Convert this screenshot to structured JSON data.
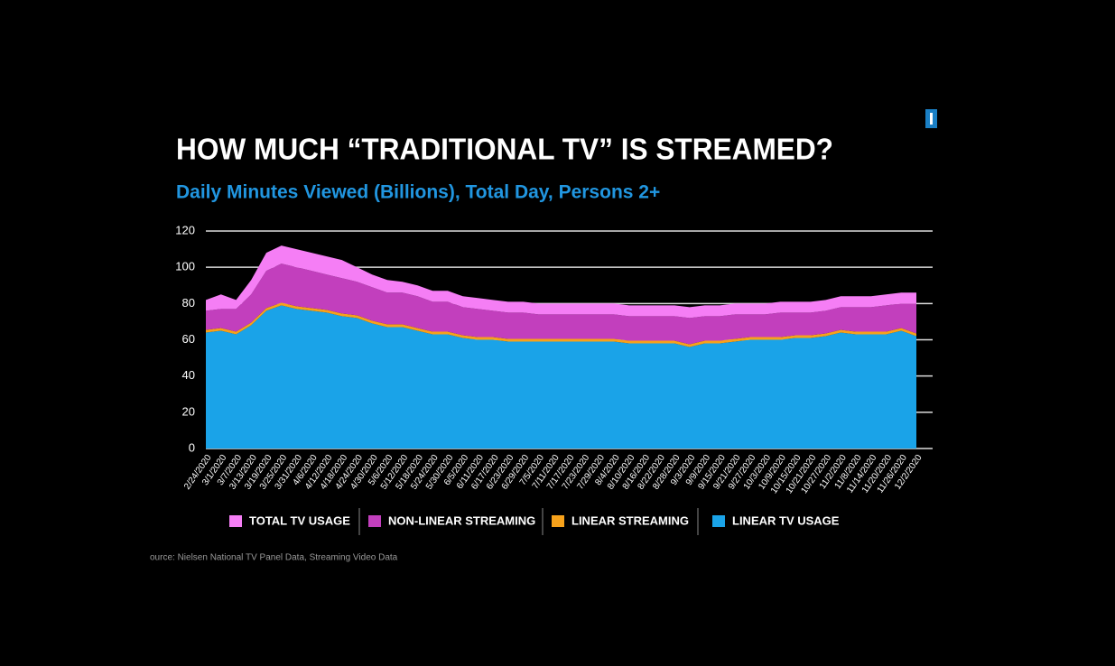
{
  "chart_data": {
    "type": "stacked-area",
    "title": "HOW MUCH “TRADITIONAL TV” IS STREAMED?",
    "subtitle": "Daily Minutes Viewed (Billions), Total Day, Persons 2+",
    "source": "ource: Nielsen National TV Panel Data, Streaming Video Data",
    "categories": [
      "2/24/2020",
      "3/1/2020",
      "3/7/2020",
      "3/13/2020",
      "3/19/2020",
      "3/25/2020",
      "3/31/2020",
      "4/6/2020",
      "4/12/2020",
      "4/18/2020",
      "4/24/2020",
      "4/30/2020",
      "5/6/2020",
      "5/12/2020",
      "5/18/2020",
      "5/24/2020",
      "5/30/2020",
      "6/5/2020",
      "6/11/2020",
      "6/17/2020",
      "6/23/2020",
      "6/29/2020",
      "7/5/2020",
      "7/11/2020",
      "7/17/2020",
      "7/23/2020",
      "7/29/2020",
      "8/4/2020",
      "8/10/2020",
      "8/16/2020",
      "8/22/2020",
      "8/28/2020",
      "9/3/2020",
      "9/9/2020",
      "9/15/2020",
      "9/21/2020",
      "9/27/2020",
      "10/3/2020",
      "10/9/2020",
      "10/15/2020",
      "10/21/2020",
      "10/27/2020",
      "11/2/2020",
      "11/8/2020",
      "11/14/2020",
      "11/20/2020",
      "11/26/2020",
      "12/2/2020"
    ],
    "series": [
      {
        "name": "LINEAR TV USAGE",
        "color": "#1aa3e8",
        "values": [
          64,
          65,
          63,
          68,
          76,
          79,
          77,
          76,
          75,
          73,
          72,
          69,
          67,
          67,
          65,
          63,
          63,
          61,
          60,
          60,
          59,
          59,
          59,
          59,
          59,
          59,
          59,
          59,
          58,
          58,
          58,
          58,
          56,
          58,
          58,
          59,
          60,
          60,
          60,
          61,
          61,
          62,
          64,
          63,
          63,
          63,
          65,
          62
        ]
      },
      {
        "name": "LINEAR STREAMING",
        "color": "#f7a21b",
        "values": [
          1.5,
          1.5,
          1.5,
          1.5,
          1.5,
          1.5,
          1.5,
          1.5,
          1.5,
          1.5,
          1.5,
          1.5,
          1.5,
          1.5,
          1.5,
          1.5,
          1.5,
          1.5,
          1.5,
          1.5,
          1.5,
          1.5,
          1.5,
          1.5,
          1.5,
          1.5,
          1.5,
          1.5,
          1.5,
          1.5,
          1.5,
          1.5,
          1.5,
          1.5,
          1.5,
          1.5,
          1.5,
          1.5,
          1.5,
          1.5,
          1.5,
          1.5,
          1.5,
          1.5,
          1.5,
          1.5,
          1.5,
          1.5
        ]
      },
      {
        "name": "NON-LINEAR STREAMING",
        "color": "#c23fbd",
        "values": [
          10.5,
          10.5,
          12.5,
          15.5,
          20.5,
          21.5,
          21.5,
          20.5,
          19.5,
          19.5,
          18.5,
          18.5,
          17.5,
          17.5,
          17.5,
          16.5,
          16.5,
          15.5,
          15.5,
          14.5,
          14.5,
          14.5,
          13.5,
          13.5,
          13.5,
          13.5,
          13.5,
          13.5,
          13.5,
          13.5,
          13.5,
          13.5,
          14.5,
          13.5,
          13.5,
          13.5,
          12.5,
          12.5,
          13.5,
          12.5,
          12.5,
          12.5,
          12.5,
          13.5,
          13.5,
          14.5,
          13.5,
          16.5
        ]
      },
      {
        "name": "TOTAL TV USAGE",
        "color": "#f57ef5",
        "values": [
          6,
          8,
          5,
          8,
          10,
          10,
          10,
          10,
          10,
          10,
          8,
          7,
          7,
          6,
          6,
          6,
          6,
          6,
          6,
          6,
          6,
          6,
          6,
          6,
          6,
          6,
          6,
          6,
          6,
          6,
          6,
          6,
          6,
          6,
          6,
          6,
          6,
          6,
          6,
          6,
          6,
          6,
          6,
          6,
          6,
          6,
          6,
          6
        ]
      }
    ],
    "ylim": [
      0,
      120
    ],
    "yticks": [
      0,
      20,
      40,
      60,
      80,
      100,
      120
    ],
    "grid": true
  }
}
